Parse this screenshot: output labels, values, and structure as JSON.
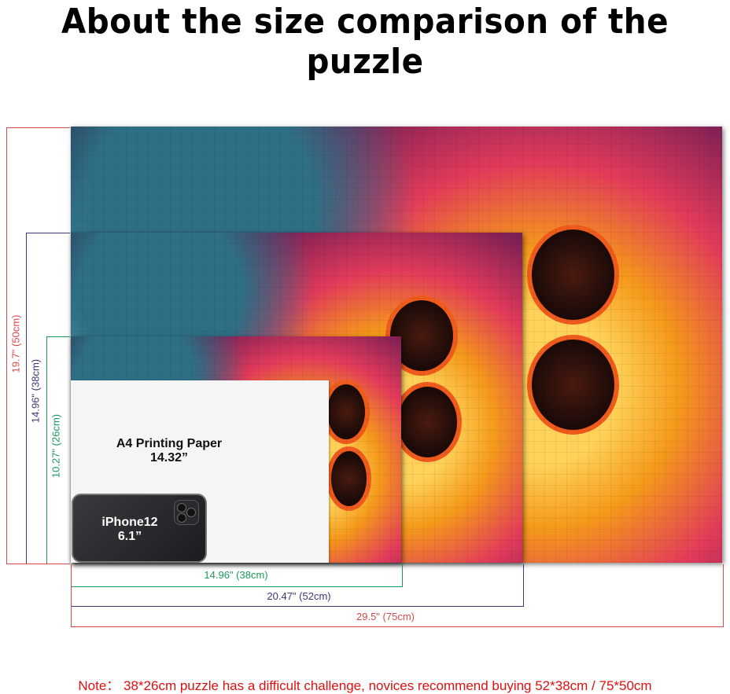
{
  "title": "About the size comparison of the puzzle",
  "colors": {
    "large": "#d84a4a",
    "medium": "#3a3a7a",
    "small": "#1a9a5a",
    "note": "#e01010"
  },
  "puzzles": {
    "large": {
      "height": "19.7\" (50cm)",
      "width": "29.5\" (75cm)"
    },
    "medium": {
      "height": "14.96\" (38cm)",
      "width": "20.47\" (52cm)"
    },
    "small": {
      "height": "10.27\" (26cm)",
      "width": "14.96\" (38cm)"
    }
  },
  "a4": {
    "line1": "A4 Printing Paper",
    "line2": "14.32”"
  },
  "phone": {
    "line1": "iPhone12",
    "line2": "6.1”"
  },
  "note": "Note： 38*26cm puzzle has a difficult challenge, novices recommend buying 52*38cm / 75*50cm"
}
